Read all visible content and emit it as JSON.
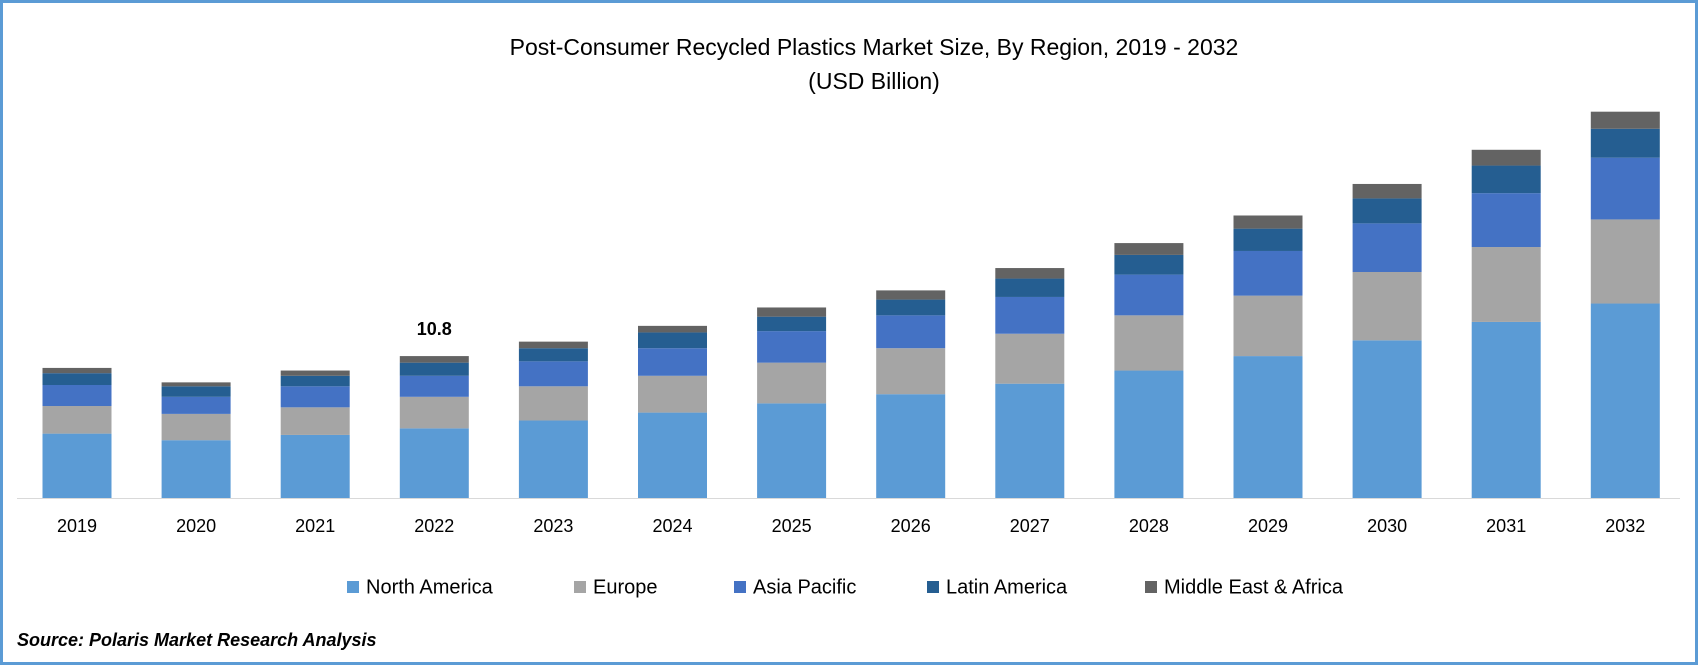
{
  "chart_data": {
    "type": "stacked_bar",
    "title": "Post-Consumer Recycled Plastics Market Size, By Region, 2019 - 2032",
    "subtitle": "(USD Billion)",
    "source": "Source: Polaris Market Research Analysis",
    "categories": [
      "2019",
      "2020",
      "2021",
      "2022",
      "2023",
      "2024",
      "2025",
      "2026",
      "2027",
      "2028",
      "2029",
      "2030",
      "2031",
      "2032"
    ],
    "series": [
      {
        "name": "North America",
        "color": "#5b9bd5",
        "values": [
          4.9,
          4.4,
          4.8,
          5.3,
          5.9,
          6.5,
          7.2,
          7.9,
          8.7,
          9.7,
          10.8,
          12.0,
          13.4,
          14.8
        ]
      },
      {
        "name": "Europe",
        "color": "#a5a5a5",
        "values": [
          2.1,
          2.0,
          2.1,
          2.4,
          2.6,
          2.8,
          3.1,
          3.5,
          3.8,
          4.2,
          4.6,
          5.2,
          5.7,
          6.4
        ]
      },
      {
        "name": "Asia Pacific",
        "color": "#4472c4",
        "values": [
          1.6,
          1.3,
          1.6,
          1.6,
          1.9,
          2.1,
          2.4,
          2.5,
          2.8,
          3.1,
          3.4,
          3.7,
          4.1,
          4.7
        ]
      },
      {
        "name": "Latin America",
        "color": "#255e91",
        "values": [
          0.9,
          0.8,
          0.8,
          1.0,
          1.0,
          1.2,
          1.1,
          1.2,
          1.4,
          1.5,
          1.7,
          1.9,
          2.1,
          2.2
        ]
      },
      {
        "name": "Middle East & Africa",
        "color": "#636363",
        "values": [
          0.4,
          0.3,
          0.4,
          0.5,
          0.5,
          0.5,
          0.7,
          0.7,
          0.8,
          0.9,
          1.0,
          1.1,
          1.2,
          1.3
        ]
      }
    ],
    "annotations": [
      {
        "category": "2022",
        "value": 10.8
      }
    ],
    "legend": "bottom"
  }
}
